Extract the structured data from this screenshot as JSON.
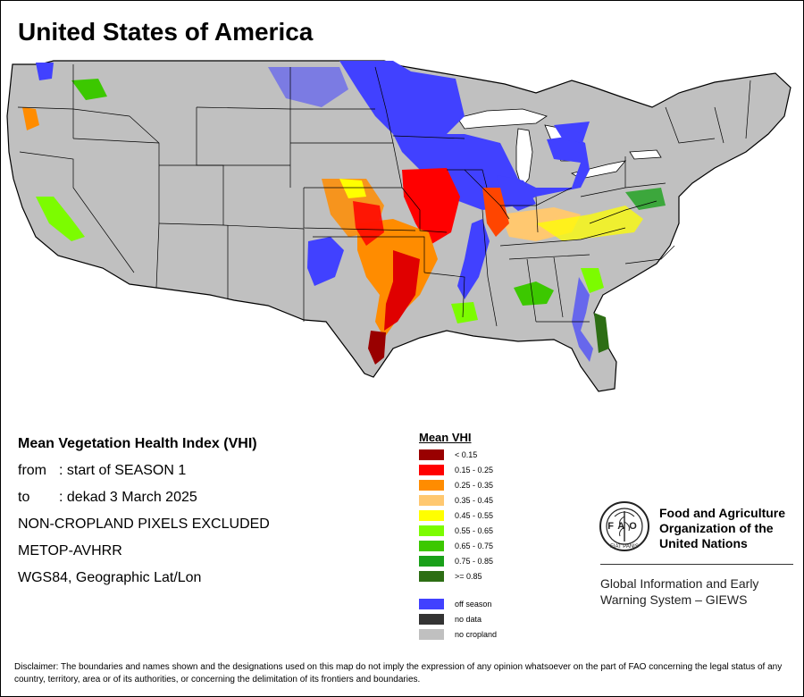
{
  "title": "United States of America",
  "map": {
    "base_color": "#c0c0c0",
    "border_color": "#000000",
    "water_color": "#ffffff"
  },
  "info": {
    "heading": "Mean Vegetation Health Index (VHI)",
    "from_key": "from",
    "from_value": ": start of SEASON 1",
    "to_key": "to",
    "to_value": ": dekad 3 March 2025",
    "line3": "NON-CROPLAND PIXELS EXCLUDED",
    "line4": "METOP-AVHRR",
    "line5": "WGS84, Geographic Lat/Lon"
  },
  "legend": {
    "title": "Mean VHI",
    "classes": [
      {
        "label": "< 0.15",
        "color": "#990000"
      },
      {
        "label": "0.15 - 0.25",
        "color": "#ff0000"
      },
      {
        "label": "0.25 - 0.35",
        "color": "#ff8c00"
      },
      {
        "label": "0.35 - 0.45",
        "color": "#ffc870"
      },
      {
        "label": "0.45 - 0.55",
        "color": "#ffff00"
      },
      {
        "label": "0.55 - 0.65",
        "color": "#7cfc00"
      },
      {
        "label": "0.65 - 0.75",
        "color": "#3cc800"
      },
      {
        "label": "0.75 - 0.85",
        "color": "#1aa01a"
      },
      {
        "label": ">= 0.85",
        "color": "#2d6e14"
      }
    ],
    "special": [
      {
        "label": "off season",
        "color": "#4141ff"
      },
      {
        "label": "no data",
        "color": "#333333"
      },
      {
        "label": "no cropland",
        "color": "#c0c0c0"
      }
    ]
  },
  "fao": {
    "logo_text": "FAO",
    "logo_motto": "FIAT PANIS",
    "name_line1": "Food and Agriculture",
    "name_line2": "Organization of the",
    "name_line3": "United Nations",
    "system_line1": "Global Information and Early",
    "system_line2": "Warning System – GIEWS"
  },
  "disclaimer": "Disclaimer: The boundaries and names shown and the designations used on this map do not imply the expression of any opinion whatsoever on the part of FAO concerning the legal status of any country, territory, area or of its authorities, or concerning the delimitation of its frontiers and boundaries."
}
